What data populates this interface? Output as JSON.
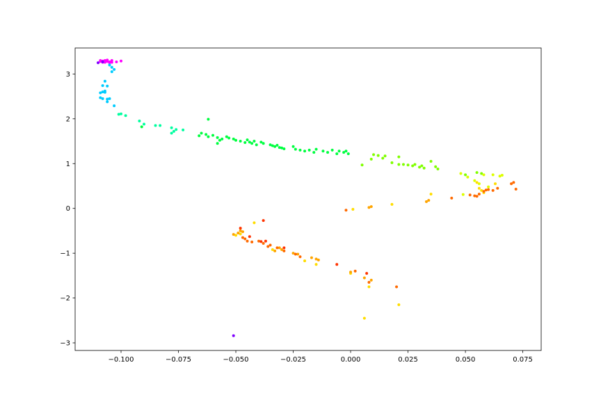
{
  "chart_data": {
    "type": "scatter",
    "title": "",
    "xlabel": "",
    "ylabel": "",
    "xlim": [
      -0.12,
      0.083
    ],
    "ylim": [
      -3.17,
      3.58
    ],
    "grid": false,
    "legend": "none",
    "x_ticks": [
      -0.1,
      -0.075,
      -0.05,
      -0.025,
      0.0,
      0.025,
      0.05,
      0.075
    ],
    "x_tick_labels": [
      "−0.100",
      "−0.075",
      "−0.050",
      "−0.025",
      "0.000",
      "0.025",
      "0.050",
      "0.075"
    ],
    "y_ticks": [
      -3,
      -2,
      -1,
      0,
      1,
      2,
      3
    ],
    "y_tick_labels": [
      "−3",
      "−2",
      "−1",
      "0",
      "1",
      "2",
      "3"
    ],
    "series": [
      {
        "color": "#ff00ff",
        "points": [
          [
            -0.108,
            3.29
          ],
          [
            -0.107,
            3.3
          ],
          [
            -0.106,
            3.28
          ],
          [
            -0.105,
            3.27
          ],
          [
            -0.104,
            3.3
          ],
          [
            -0.106,
            3.31
          ],
          [
            -0.108,
            3.26
          ],
          [
            -0.109,
            3.28
          ],
          [
            -0.107,
            3.26
          ],
          [
            -0.102,
            3.27
          ],
          [
            -0.1,
            3.29
          ],
          [
            -0.105,
            3.25
          ],
          [
            -0.109,
            3.3
          ],
          [
            -0.104,
            3.26
          ]
        ]
      },
      {
        "color": "#7f00ff",
        "points": [
          [
            -0.11,
            3.25
          ],
          [
            -0.108,
            3.27
          ],
          [
            -0.051,
            -2.84
          ]
        ]
      },
      {
        "color": "#00ccff",
        "points": [
          [
            -0.108,
            2.74
          ],
          [
            -0.107,
            2.84
          ],
          [
            -0.106,
            2.73
          ],
          [
            -0.107,
            2.62
          ],
          [
            -0.108,
            2.6
          ],
          [
            -0.107,
            2.59
          ],
          [
            -0.109,
            2.58
          ],
          [
            -0.108,
            2.45
          ],
          [
            -0.109,
            2.47
          ],
          [
            -0.106,
            2.44
          ],
          [
            -0.105,
            2.45
          ],
          [
            -0.106,
            2.38
          ],
          [
            -0.104,
            3.15
          ],
          [
            -0.104,
            3.05
          ],
          [
            -0.103,
            3.1
          ],
          [
            -0.105,
            3.2
          ],
          [
            -0.103,
            2.29
          ]
        ]
      },
      {
        "color": "#00ffa0",
        "points": [
          [
            -0.101,
            2.1
          ],
          [
            -0.1,
            2.11
          ],
          [
            -0.098,
            2.07
          ],
          [
            -0.092,
            1.95
          ],
          [
            -0.09,
            1.88
          ],
          [
            -0.085,
            1.85
          ],
          [
            -0.083,
            1.85
          ],
          [
            -0.078,
            1.8
          ],
          [
            -0.077,
            1.72
          ],
          [
            -0.076,
            1.76
          ],
          [
            -0.073,
            1.75
          ],
          [
            -0.078,
            1.68
          ]
        ]
      },
      {
        "color": "#00ff40",
        "points": [
          [
            -0.091,
            1.82
          ],
          [
            -0.066,
            1.62
          ],
          [
            -0.065,
            1.68
          ],
          [
            -0.063,
            1.65
          ],
          [
            -0.062,
            1.6
          ],
          [
            -0.06,
            1.63
          ],
          [
            -0.062,
            1.99
          ],
          [
            -0.058,
            1.58
          ],
          [
            -0.057,
            1.52
          ],
          [
            -0.056,
            1.55
          ],
          [
            -0.054,
            1.6
          ],
          [
            -0.053,
            1.57
          ],
          [
            -0.051,
            1.55
          ],
          [
            -0.05,
            1.52
          ],
          [
            -0.048,
            1.5
          ],
          [
            -0.046,
            1.47
          ],
          [
            -0.045,
            1.53
          ],
          [
            -0.044,
            1.48
          ],
          [
            -0.043,
            1.45
          ],
          [
            -0.042,
            1.5
          ],
          [
            -0.041,
            1.42
          ],
          [
            -0.039,
            1.48
          ],
          [
            -0.038,
            1.45
          ],
          [
            -0.035,
            1.42
          ],
          [
            -0.034,
            1.4
          ],
          [
            -0.033,
            1.38
          ],
          [
            -0.032,
            1.41
          ],
          [
            -0.031,
            1.36
          ],
          [
            -0.03,
            1.35
          ],
          [
            -0.029,
            1.33
          ],
          [
            -0.025,
            1.38
          ],
          [
            -0.024,
            1.32
          ],
          [
            -0.022,
            1.3
          ],
          [
            -0.02,
            1.28
          ],
          [
            -0.018,
            1.3
          ],
          [
            -0.016,
            1.25
          ],
          [
            -0.015,
            1.32
          ],
          [
            -0.012,
            1.28
          ],
          [
            -0.01,
            1.25
          ],
          [
            -0.008,
            1.3
          ],
          [
            -0.006,
            1.22
          ],
          [
            -0.005,
            1.28
          ],
          [
            -0.003,
            1.25
          ],
          [
            -0.001,
            1.22
          ],
          [
            -0.002,
            1.28
          ],
          [
            -0.058,
            1.45
          ]
        ]
      },
      {
        "color": "#80ff00",
        "points": [
          [
            0.005,
            0.97
          ],
          [
            0.009,
            1.1
          ],
          [
            0.01,
            1.2
          ],
          [
            0.012,
            1.18
          ],
          [
            0.014,
            1.12
          ],
          [
            0.015,
            1.17
          ],
          [
            0.018,
            1.02
          ],
          [
            0.021,
            1.15
          ],
          [
            0.021,
            0.98
          ],
          [
            0.023,
            0.98
          ],
          [
            0.025,
            0.97
          ],
          [
            0.027,
            0.95
          ],
          [
            0.028,
            0.98
          ],
          [
            0.03,
            0.92
          ],
          [
            0.031,
            0.95
          ],
          [
            0.032,
            0.9
          ],
          [
            0.035,
            1.05
          ],
          [
            0.037,
            0.93
          ],
          [
            0.038,
            0.88
          ],
          [
            0.055,
            0.8
          ],
          [
            0.057,
            0.78
          ],
          [
            0.05,
            0.75
          ]
        ]
      },
      {
        "color": "#ddff00",
        "points": [
          [
            0.048,
            0.78
          ],
          [
            0.051,
            0.7
          ],
          [
            0.054,
            0.62
          ],
          [
            0.056,
            0.55
          ],
          [
            0.058,
            0.75
          ],
          [
            0.06,
            0.48
          ],
          [
            0.062,
            0.75
          ],
          [
            0.065,
            0.72
          ],
          [
            0.066,
            0.74
          ],
          [
            0.049,
            0.31
          ]
        ]
      },
      {
        "color": "#ffdd00",
        "points": [
          [
            0.055,
            0.58
          ],
          [
            0.056,
            0.45
          ],
          [
            0.057,
            0.4
          ],
          [
            0.058,
            0.35
          ],
          [
            0.063,
            0.55
          ],
          [
            0.018,
            0.09
          ],
          [
            0.001,
            -0.02
          ],
          [
            0.035,
            0.32
          ],
          [
            -0.042,
            -0.32
          ],
          [
            -0.034,
            -0.92
          ],
          [
            -0.02,
            -1.17
          ],
          [
            -0.015,
            -1.25
          ],
          [
            0.0,
            -1.45
          ],
          [
            0.008,
            -1.75
          ],
          [
            0.021,
            -2.15
          ],
          [
            0.006,
            -2.45
          ],
          [
            -0.048,
            -0.57
          ],
          [
            -0.05,
            -0.6
          ]
        ]
      },
      {
        "color": "#ffa500",
        "points": [
          [
            -0.049,
            -0.55
          ],
          [
            -0.047,
            -0.52
          ],
          [
            -0.051,
            -0.58
          ],
          [
            -0.048,
            -0.5
          ],
          [
            -0.033,
            -0.95
          ],
          [
            -0.031,
            -0.88
          ],
          [
            -0.03,
            -0.92
          ],
          [
            -0.025,
            -1.0
          ],
          [
            -0.023,
            -1.02
          ],
          [
            -0.015,
            -1.13
          ],
          [
            -0.014,
            -1.15
          ],
          [
            0.008,
            0.02
          ],
          [
            0.009,
            0.04
          ],
          [
            0.033,
            0.15
          ],
          [
            0.034,
            0.18
          ],
          [
            -0.017,
            -1.1
          ],
          [
            0.006,
            -1.55
          ],
          [
            0.009,
            -1.6
          ],
          [
            0.0,
            -1.42
          ]
        ]
      },
      {
        "color": "#ff6a00",
        "points": [
          [
            0.052,
            0.3
          ],
          [
            0.054,
            0.28
          ],
          [
            0.056,
            0.32
          ],
          [
            0.058,
            0.38
          ],
          [
            0.06,
            0.42
          ],
          [
            0.062,
            0.4
          ],
          [
            0.064,
            0.45
          ],
          [
            0.07,
            0.55
          ],
          [
            0.071,
            0.58
          ],
          [
            0.072,
            0.43
          ],
          [
            0.044,
            0.23
          ],
          [
            0.055,
            0.27
          ],
          [
            -0.002,
            -0.04
          ],
          [
            -0.045,
            -0.73
          ],
          [
            -0.046,
            -0.68
          ],
          [
            -0.047,
            -0.65
          ],
          [
            -0.043,
            -0.75
          ],
          [
            -0.04,
            -0.73
          ],
          [
            -0.038,
            -0.78
          ],
          [
            -0.036,
            -0.85
          ],
          [
            -0.035,
            -0.82
          ],
          [
            -0.032,
            -0.88
          ],
          [
            -0.029,
            -0.95
          ],
          [
            -0.024,
            -1.02
          ],
          [
            -0.022,
            -1.08
          ],
          [
            0.02,
            -1.75
          ],
          [
            0.008,
            -1.65
          ],
          [
            0.002,
            -1.4
          ],
          [
            0.059,
            0.41
          ]
        ]
      },
      {
        "color": "#ff3300",
        "points": [
          [
            -0.048,
            -0.44
          ],
          [
            -0.044,
            -0.63
          ],
          [
            -0.039,
            -0.74
          ],
          [
            -0.038,
            -0.27
          ],
          [
            -0.037,
            -0.73
          ],
          [
            -0.029,
            -0.88
          ],
          [
            -0.006,
            -1.25
          ],
          [
            0.007,
            -1.45
          ]
        ]
      }
    ]
  }
}
